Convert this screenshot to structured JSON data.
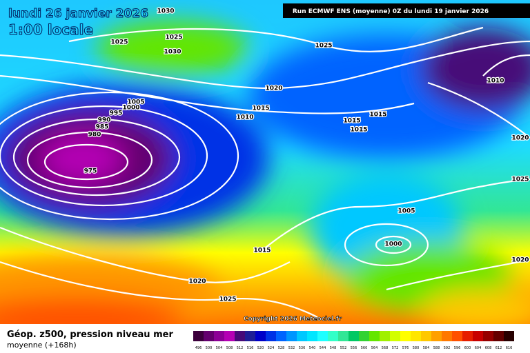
{
  "header": {
    "title": "lundi 26 janvier 2026",
    "time": "1:00 locale",
    "run": "Run ECMWF ENS (moyenne) 0Z du lundi 19 janvier 2026"
  },
  "isobar_labels": [
    1030,
    1025,
    1025,
    1030,
    1025,
    1020,
    1010,
    1005,
    1000,
    995,
    990,
    985,
    980,
    975,
    1015,
    1010,
    1015,
    1015,
    1015,
    1020,
    1025,
    1005,
    1000,
    1015,
    1020,
    1025,
    1020
  ],
  "footer": {
    "copyright": "Copyright 2026 Meteociel.fr",
    "title": "Géop. z500, pression niveau mer",
    "subtitle": "moyenne   (+168h)"
  },
  "scale": {
    "values": [
      496,
      500,
      504,
      508,
      512,
      516,
      520,
      524,
      528,
      532,
      536,
      540,
      544,
      548,
      552,
      556,
      560,
      564,
      568,
      572,
      576,
      580,
      584,
      588,
      592,
      596,
      600,
      604,
      608,
      612,
      616
    ],
    "colors": [
      "#3c003c",
      "#64006e",
      "#8c0096",
      "#b400b4",
      "#460a78",
      "#1e1e96",
      "#0000c8",
      "#0032e6",
      "#0064ff",
      "#0096ff",
      "#00c8ff",
      "#00e6ff",
      "#1effff",
      "#32ffc8",
      "#32e696",
      "#00c864",
      "#32d232",
      "#64e600",
      "#a0f000",
      "#d2ff00",
      "#ffff00",
      "#ffe600",
      "#ffc800",
      "#ffa000",
      "#ff7800",
      "#ff5000",
      "#e61e00",
      "#c80000",
      "#960000",
      "#640000",
      "#280000"
    ]
  }
}
